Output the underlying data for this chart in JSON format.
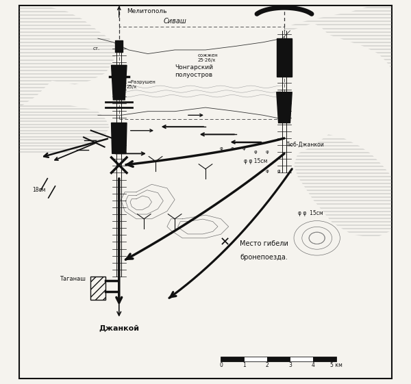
{
  "bg_color": "#ffffff",
  "border_color": "#222222",
  "labels": {
    "melitopol": "Мелитополь",
    "sivash": "Сиваш",
    "chongar": "Чонгарский\nполуостров",
    "tyub_dzhankoi": "Тюб-Джанкои",
    "taganak": "Таганаш",
    "dzhankoi": "Джанкой",
    "razrushen": "=Разрушен\n25/x",
    "sozhzhen": "сожжен\n25·26/x",
    "mesto_gibeli_x": "X",
    "mesto_gibeli_text": "Место гибели\nбронепоезда.",
    "art_15cm_center": "φ φ 15см",
    "art_15cm_right": "φ φ  15см",
    "art_18cm": "18см",
    "st": "ст."
  },
  "hatch_color": "#555555",
  "line_color": "#111111",
  "map_bg": "#ffffff"
}
